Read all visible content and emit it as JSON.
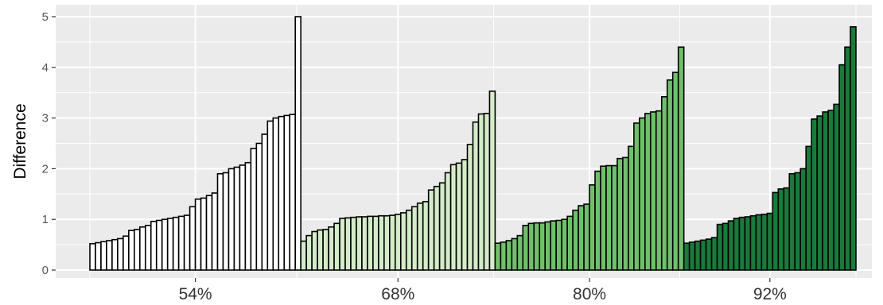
{
  "chart_data": {
    "type": "bar",
    "ylabel": "Difference",
    "xlabel": "",
    "ylim": [
      0,
      5
    ],
    "yticks": [
      0,
      1,
      2,
      3,
      4,
      5
    ],
    "grid": true,
    "categories": [
      "54%",
      "68%",
      "80%",
      "92%"
    ],
    "colors": {
      "panel": "#ebebeb",
      "grid": "#ffffff",
      "bar_stroke": "#000000",
      "groups": [
        "#ffffff",
        "#d4ecc8",
        "#6fc06a",
        "#1a7a3a"
      ]
    },
    "groups": [
      {
        "category": "54%",
        "values": [
          0.52,
          0.54,
          0.56,
          0.58,
          0.6,
          0.62,
          0.67,
          0.78,
          0.8,
          0.85,
          0.88,
          0.96,
          0.98,
          1.0,
          1.02,
          1.04,
          1.06,
          1.08,
          1.25,
          1.4,
          1.42,
          1.47,
          1.52,
          1.9,
          1.92,
          2.0,
          2.03,
          2.07,
          2.12,
          2.4,
          2.5,
          2.68,
          2.94,
          3.0,
          3.03,
          3.05,
          3.07,
          5.0
        ]
      },
      {
        "category": "68%",
        "values": [
          0.57,
          0.68,
          0.76,
          0.79,
          0.8,
          0.85,
          0.92,
          1.02,
          1.03,
          1.04,
          1.05,
          1.05,
          1.06,
          1.06,
          1.07,
          1.07,
          1.08,
          1.1,
          1.13,
          1.18,
          1.25,
          1.32,
          1.35,
          1.58,
          1.65,
          1.72,
          1.92,
          2.08,
          2.11,
          2.18,
          2.48,
          2.92,
          3.08,
          3.09,
          3.53
        ]
      },
      {
        "category": "80%",
        "values": [
          0.53,
          0.55,
          0.58,
          0.62,
          0.68,
          0.88,
          0.92,
          0.93,
          0.93,
          0.95,
          0.97,
          0.98,
          1.0,
          1.06,
          1.18,
          1.27,
          1.3,
          1.68,
          1.95,
          2.05,
          2.06,
          2.06,
          2.2,
          2.22,
          2.44,
          2.9,
          3.0,
          3.09,
          3.12,
          3.14,
          3.42,
          3.75,
          3.9,
          4.4
        ]
      },
      {
        "category": "92%",
        "values": [
          0.53,
          0.55,
          0.57,
          0.59,
          0.61,
          0.64,
          0.9,
          0.92,
          0.97,
          1.02,
          1.04,
          1.05,
          1.07,
          1.09,
          1.1,
          1.12,
          1.53,
          1.6,
          1.62,
          1.9,
          1.92,
          2.0,
          2.44,
          2.98,
          3.04,
          3.12,
          3.15,
          3.27,
          4.05,
          4.4,
          4.8
        ]
      }
    ]
  }
}
